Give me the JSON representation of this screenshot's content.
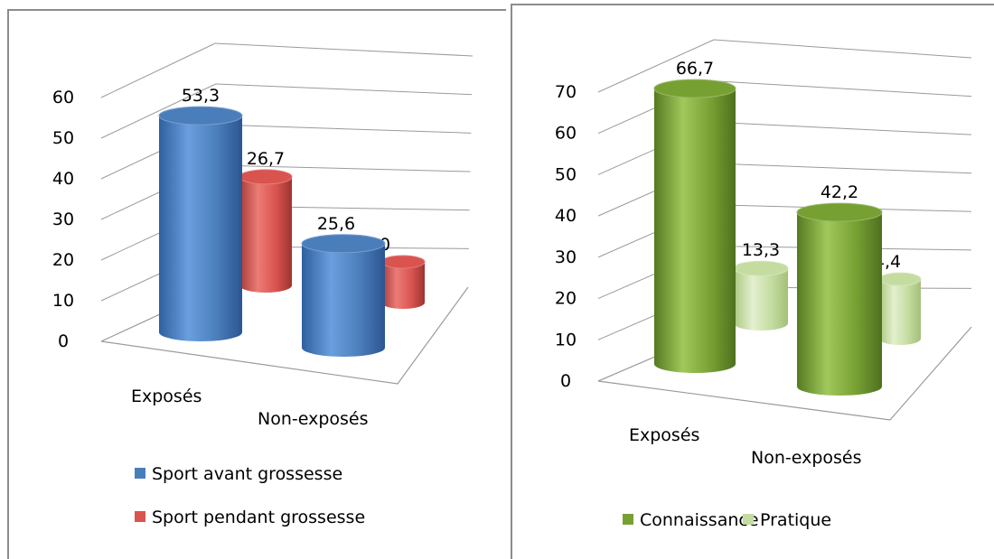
{
  "chart_data": [
    {
      "type": "bar",
      "categories": [
        "Exposés",
        "Non-exposés"
      ],
      "series": [
        {
          "name": "Sport avant grossesse",
          "values": [
            53.3,
            25.6
          ],
          "labels": [
            "53,3",
            "25,6"
          ],
          "color": "#4a7ebb"
        },
        {
          "name": "Sport pendant grossesse",
          "values": [
            26.7,
            10
          ],
          "labels": [
            "26,7",
            "10"
          ],
          "color": "#d9534f"
        }
      ],
      "ylim": [
        0,
        60
      ],
      "yticks": [
        "0",
        "10",
        "20",
        "30",
        "40",
        "50",
        "60"
      ],
      "grid": true,
      "legend": "bottom",
      "style": "3d-cylinder"
    },
    {
      "type": "bar",
      "categories": [
        "Exposés",
        "Non-exposés"
      ],
      "series": [
        {
          "name": "Connaissance",
          "values": [
            66.7,
            42.2
          ],
          "labels": [
            "66,7",
            "42,2"
          ],
          "color": "#77a033"
        },
        {
          "name": "Pratique",
          "values": [
            13.3,
            14.4
          ],
          "labels": [
            "13,3",
            "14,4"
          ],
          "color": "#c4dca0"
        }
      ],
      "ylim": [
        0,
        70
      ],
      "yticks": [
        "0",
        "10",
        "20",
        "30",
        "40",
        "50",
        "60",
        "70"
      ],
      "grid": true,
      "legend": "bottom",
      "style": "3d-cylinder"
    }
  ]
}
